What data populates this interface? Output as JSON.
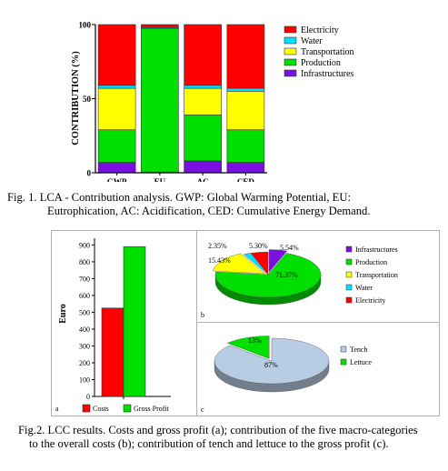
{
  "fig1": {
    "chart_data": {
      "type": "bar",
      "stacked": true,
      "categories": [
        "GWP",
        "EU",
        "AC",
        "CED"
      ],
      "ylabel": "CONTRIBUTION  (%)",
      "yticks": [
        0,
        50,
        100
      ],
      "ylim": [
        0,
        100
      ],
      "legend_position": "top-right",
      "series": [
        {
          "name": "Infrastructures",
          "color": "#7b0fe0",
          "values": [
            7,
            0.5,
            8,
            7
          ]
        },
        {
          "name": "Production",
          "color": "#00e000",
          "values": [
            22,
            97,
            31,
            22
          ]
        },
        {
          "name": "Transportation",
          "color": "#ffff00",
          "values": [
            28,
            0,
            18,
            26
          ]
        },
        {
          "name": "Water",
          "color": "#00e0ff",
          "values": [
            2,
            0.5,
            2,
            2
          ]
        },
        {
          "name": "Electricity",
          "color": "#ff0000",
          "values": [
            41,
            2,
            41,
            43
          ]
        }
      ]
    },
    "caption_line1": "Fig. 1. LCA - Contribution analysis. GWP: Global Warming Potential, EU:",
    "caption_line2": "Eutrophication, AC: Acidification, CED: Cumulative Energy Demand."
  },
  "fig2": {
    "panel_a": {
      "label": "a",
      "chart_data": {
        "type": "bar",
        "ylabel": "Euro",
        "yticks": [
          0,
          100,
          200,
          300,
          400,
          500,
          600,
          700,
          800,
          900
        ],
        "ylim": [
          0,
          940
        ],
        "series": [
          {
            "name": "Costs",
            "color": "#ff0000",
            "values": [
              525
            ]
          },
          {
            "name": "Gross Profit",
            "color": "#00e000",
            "values": [
              890
            ]
          }
        ]
      }
    },
    "panel_b": {
      "label": "b",
      "chart_data": {
        "type": "pie",
        "slices": [
          {
            "name": "Infrastructures",
            "color": "#7b0fe0",
            "value": 5.54,
            "label": "5.54%"
          },
          {
            "name": "Production",
            "color": "#00e000",
            "value": 71.37,
            "label": "71.37%"
          },
          {
            "name": "Transportation",
            "color": "#ffff00",
            "value": 15.43,
            "label": "15.43%"
          },
          {
            "name": "Water",
            "color": "#00e0ff",
            "value": 2.35,
            "label": "2.35%"
          },
          {
            "name": "Electricity",
            "color": "#ff0000",
            "value": 5.3,
            "label": "5.30%"
          }
        ]
      }
    },
    "panel_c": {
      "label": "c",
      "chart_data": {
        "type": "pie",
        "slices": [
          {
            "name": "Tench",
            "color": "#b8cce4",
            "value": 87,
            "label": "87%"
          },
          {
            "name": "Lettuce",
            "color": "#00e000",
            "value": 13,
            "label": "13%"
          }
        ]
      }
    },
    "caption_line1": "Fig.2. LCC results. Costs and gross profit (a); contribution of the five macro-categories",
    "caption_line2": "to the overall costs (b); contribution of tench and lettuce to the gross profit (c)."
  }
}
